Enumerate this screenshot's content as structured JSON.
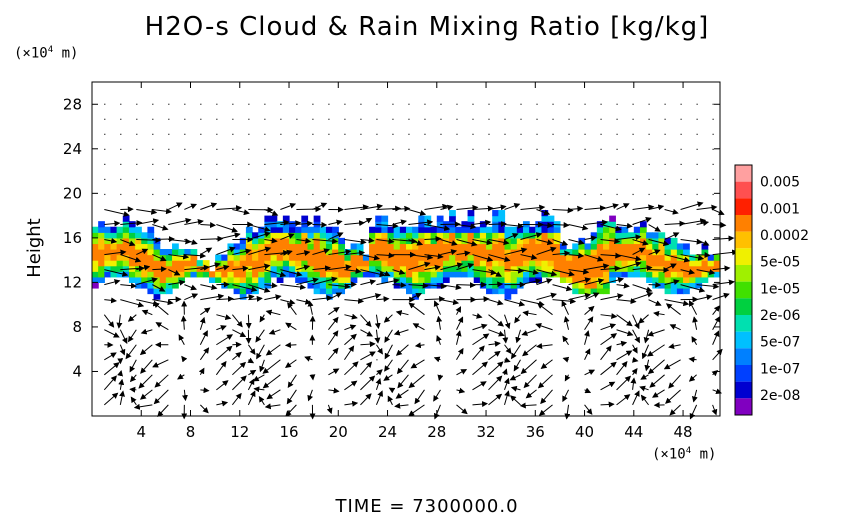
{
  "chart_data": {
    "type": "heatmap",
    "title": "H2O-s Cloud & Rain Mixing Ratio [kg/kg]",
    "ylabel": "Height",
    "y_unit": "(x10^4 m)",
    "x_unit": "(x10^4 m)",
    "xlim": [
      0,
      51
    ],
    "ylim": [
      0,
      30
    ],
    "x_ticks": [
      4,
      8,
      12,
      16,
      20,
      24,
      28,
      32,
      36,
      40,
      44,
      48
    ],
    "y_ticks": [
      4,
      8,
      12,
      16,
      20,
      24,
      28
    ],
    "colorbar": {
      "labels": [
        "0.005",
        "0.001",
        "0.0002",
        "5e-05",
        "1e-05",
        "2e-06",
        "5e-07",
        "1e-07",
        "2e-08"
      ],
      "colors": [
        "#ffa0a0",
        "#ff5050",
        "#ff2000",
        "#ff8000",
        "#ffc000",
        "#f0f000",
        "#a0f000",
        "#40e000",
        "#00d040",
        "#00e0b0",
        "#00c0ff",
        "#0080ff",
        "#0040ff",
        "#0000d0",
        "#8000c0"
      ]
    },
    "field_description": "Cloud layer between ~11 and ~17 (x10^4 m) height spanning the full domain, thin anvil up to ~18.5 near x 14-20 and 22-38, overlaid with wind vectors",
    "time_label": "TIME",
    "time_value": "7300000.0"
  }
}
